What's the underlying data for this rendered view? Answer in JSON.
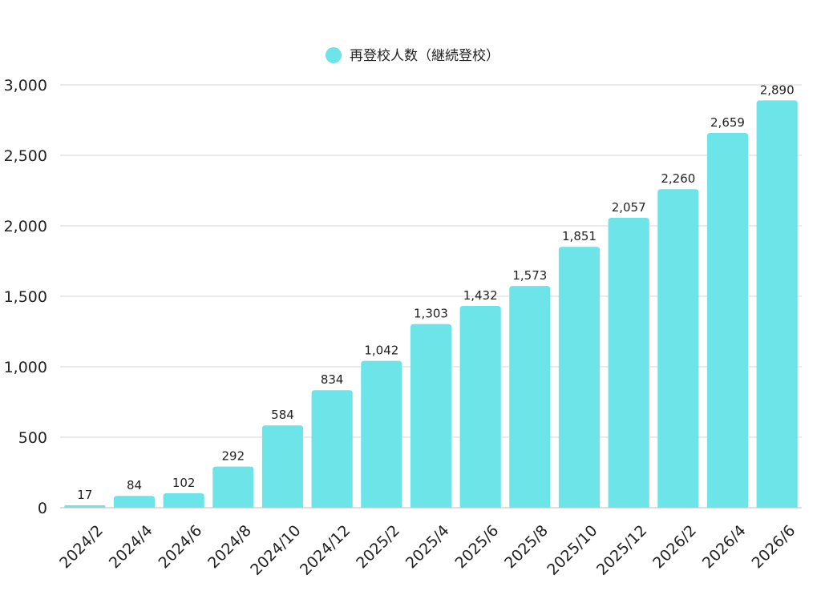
{
  "chart_data": {
    "type": "bar",
    "categories": [
      "2024/2",
      "2024/4",
      "2024/6",
      "2024/8",
      "2024/10",
      "2024/12",
      "2025/2",
      "2025/4",
      "2025/6",
      "2025/8",
      "2025/10",
      "2025/12",
      "2026/2",
      "2026/4",
      "2026/6"
    ],
    "series": [
      {
        "name": "再登校人数（継続登校）",
        "values": [
          17,
          84,
          102,
          292,
          584,
          834,
          1042,
          1303,
          1432,
          1573,
          1851,
          2057,
          2260,
          2659,
          2890
        ],
        "color": "#6ce4e8"
      }
    ],
    "value_labels": [
      "17",
      "84",
      "102",
      "292",
      "584",
      "834",
      "1,042",
      "1,303",
      "1,432",
      "1,573",
      "1,851",
      "2,057",
      "2,260",
      "2,659",
      "2,890"
    ],
    "y_ticks": [
      0,
      500,
      1000,
      1500,
      2000,
      2500,
      3000
    ],
    "y_tick_labels": [
      "0",
      "500",
      "1,000",
      "1,500",
      "2,000",
      "2,500",
      "3,000"
    ],
    "ylim": [
      0,
      3000
    ],
    "grid": true,
    "legend_position": "top-center"
  }
}
